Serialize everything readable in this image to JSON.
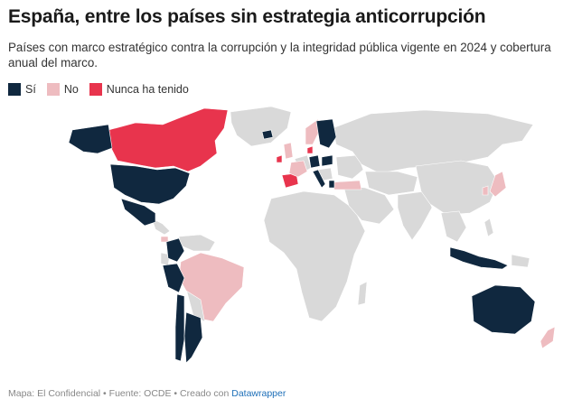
{
  "header": {
    "title": "España, entre los países sin estrategia anticorrupción",
    "subtitle": "Países con marco estratégico contra la corrupción y la integridad pública vigente en 2024 y cobertura anual del marco."
  },
  "legend": [
    {
      "label": "Sí",
      "color": "#10283f"
    },
    {
      "label": "No",
      "color": "#eebcc0"
    },
    {
      "label": "Nunca ha tenido",
      "color": "#e8344d"
    }
  ],
  "colors": {
    "ocean": "#ffffff",
    "land_default": "#d9d9d9",
    "si": "#10283f",
    "no": "#eebcc0",
    "nunca": "#e8344d"
  },
  "map": {
    "categories": {
      "Sí": [
        "Estados Unidos",
        "México",
        "Colombia",
        "Perú",
        "Chile",
        "Argentina",
        "Australia",
        "Indonesia",
        "Alemania",
        "Polonia",
        "Suecia",
        "Finlandia",
        "Italia",
        "Grecia",
        "Islandia"
      ],
      "No": [
        "Brasil",
        "Turquía",
        "Japón",
        "Corea del Sur",
        "Francia",
        "Noruega",
        "Costa Rica",
        "Reino Unido",
        "Nueva Zelanda"
      ],
      "Nunca ha tenido": [
        "Canadá",
        "España",
        "Irlanda",
        "Dinamarca"
      ]
    }
  },
  "footer": {
    "text": "Mapa: El Confidencial • Fuente: OCDE • Creado con ",
    "link": "Datawrapper"
  }
}
